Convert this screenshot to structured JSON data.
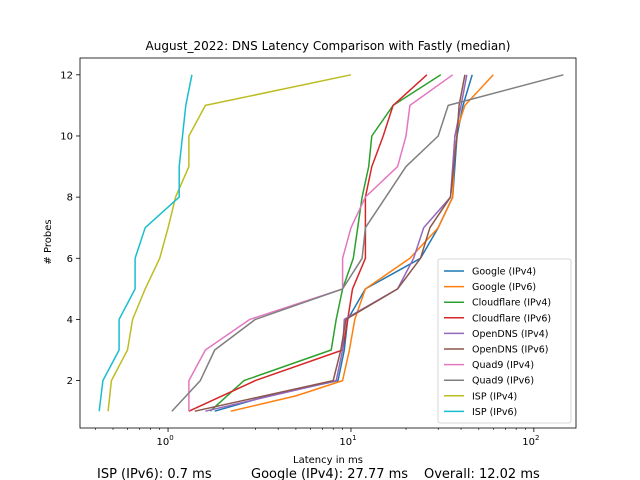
{
  "chart_data": {
    "type": "line",
    "title": "August_2022: DNS Latency Comparison with Fastly (median)",
    "xlabel": "Latency in ms",
    "ylabel": "# Probes",
    "xscale": "log",
    "xlim": [
      0.33,
      170
    ],
    "ylim": [
      0.45,
      12.55
    ],
    "xticks": [
      {
        "value": 1,
        "label": "10^0"
      },
      {
        "value": 10,
        "label": "10^1"
      },
      {
        "value": 100,
        "label": "10^2"
      }
    ],
    "yticks": [
      2,
      4,
      6,
      8,
      10,
      12
    ],
    "legend_position": "lower right",
    "grid": false,
    "series": [
      {
        "name": "Google (IPv4)",
        "color": "#1f77b4",
        "points": [
          [
            1.8,
            1
          ],
          [
            3.5,
            1.5
          ],
          [
            8.5,
            2
          ],
          [
            9.2,
            3
          ],
          [
            9.6,
            4
          ],
          [
            12,
            5
          ],
          [
            24,
            6
          ],
          [
            30,
            7
          ],
          [
            36,
            8
          ],
          [
            38,
            10
          ],
          [
            41,
            11
          ],
          [
            46,
            12
          ]
        ]
      },
      {
        "name": "Google (IPv6)",
        "color": "#ff7f0e",
        "points": [
          [
            2.2,
            1
          ],
          [
            5,
            1.5
          ],
          [
            9,
            2
          ],
          [
            9.8,
            3
          ],
          [
            10.5,
            4
          ],
          [
            12,
            5
          ],
          [
            21,
            6
          ],
          [
            30,
            7
          ],
          [
            36,
            8
          ],
          [
            37,
            10
          ],
          [
            42,
            11
          ],
          [
            60,
            12
          ]
        ]
      },
      {
        "name": "Cloudflare (IPv4)",
        "color": "#2ca02c",
        "points": [
          [
            1.7,
            1
          ],
          [
            2.6,
            2
          ],
          [
            7.8,
            3
          ],
          [
            8.3,
            4
          ],
          [
            9,
            5
          ],
          [
            10.3,
            6
          ],
          [
            11.5,
            8
          ],
          [
            12.5,
            9
          ],
          [
            13,
            10
          ],
          [
            17,
            11
          ],
          [
            31,
            12
          ]
        ]
      },
      {
        "name": "Cloudflare (IPv6)",
        "color": "#d62728",
        "points": [
          [
            1.3,
            1
          ],
          [
            3,
            2
          ],
          [
            9,
            3
          ],
          [
            9.6,
            4
          ],
          [
            10.2,
            5
          ],
          [
            12,
            6
          ],
          [
            12,
            8
          ],
          [
            13,
            9
          ],
          [
            15,
            10
          ],
          [
            17,
            11
          ],
          [
            26,
            12
          ]
        ]
      },
      {
        "name": "OpenDNS (IPv4)",
        "color": "#9467bd",
        "points": [
          [
            1.6,
            1
          ],
          [
            8.3,
            2
          ],
          [
            9,
            3
          ],
          [
            9.2,
            4
          ],
          [
            18,
            5
          ],
          [
            22,
            6
          ],
          [
            25,
            7
          ],
          [
            35,
            8
          ],
          [
            37,
            10
          ],
          [
            40,
            11
          ],
          [
            43,
            12
          ]
        ]
      },
      {
        "name": "OpenDNS (IPv6)",
        "color": "#8c564b",
        "points": [
          [
            1.4,
            1
          ],
          [
            8,
            2
          ],
          [
            8.8,
            3
          ],
          [
            9.4,
            4
          ],
          [
            18,
            5
          ],
          [
            24,
            6
          ],
          [
            27,
            7
          ],
          [
            35,
            8
          ],
          [
            38,
            10
          ],
          [
            39,
            11
          ],
          [
            42,
            12
          ]
        ]
      },
      {
        "name": "Quad9 (IPv4)",
        "color": "#e377c2",
        "points": [
          [
            1.3,
            1
          ],
          [
            1.3,
            2
          ],
          [
            1.6,
            3
          ],
          [
            2.8,
            4
          ],
          [
            9,
            5
          ],
          [
            9,
            6
          ],
          [
            10,
            7
          ],
          [
            12,
            8
          ],
          [
            18,
            9
          ],
          [
            20,
            10
          ],
          [
            21,
            11
          ],
          [
            36,
            12
          ]
        ]
      },
      {
        "name": "Quad9 (IPv6)",
        "color": "#7f7f7f",
        "points": [
          [
            1.05,
            1
          ],
          [
            1.5,
            2
          ],
          [
            1.8,
            3
          ],
          [
            3,
            4
          ],
          [
            9,
            5
          ],
          [
            11.5,
            6
          ],
          [
            12,
            7
          ],
          [
            20,
            9
          ],
          [
            30,
            10
          ],
          [
            34,
            11
          ],
          [
            145,
            12
          ]
        ]
      },
      {
        "name": "ISP (IPv4)",
        "color": "#bcbd22",
        "points": [
          [
            0.47,
            1
          ],
          [
            0.49,
            2
          ],
          [
            0.6,
            3
          ],
          [
            0.64,
            4
          ],
          [
            0.75,
            5
          ],
          [
            0.9,
            6
          ],
          [
            1,
            7
          ],
          [
            1.1,
            8
          ],
          [
            1.3,
            9
          ],
          [
            1.3,
            10
          ],
          [
            1.6,
            11
          ],
          [
            10,
            12
          ]
        ]
      },
      {
        "name": "ISP (IPv6)",
        "color": "#17becf",
        "points": [
          [
            0.42,
            1
          ],
          [
            0.44,
            2
          ],
          [
            0.54,
            3
          ],
          [
            0.54,
            4
          ],
          [
            0.66,
            5
          ],
          [
            0.66,
            6
          ],
          [
            0.75,
            7
          ],
          [
            1.15,
            8
          ],
          [
            1.15,
            9
          ],
          [
            1.2,
            10
          ],
          [
            1.25,
            11
          ],
          [
            1.35,
            12
          ]
        ]
      }
    ]
  },
  "footer": {
    "isp_label": "ISP (IPv6): 0.7 ms",
    "google_label": "Google (IPv4): 27.77 ms",
    "overall_label": "Overall: 12.02 ms"
  }
}
